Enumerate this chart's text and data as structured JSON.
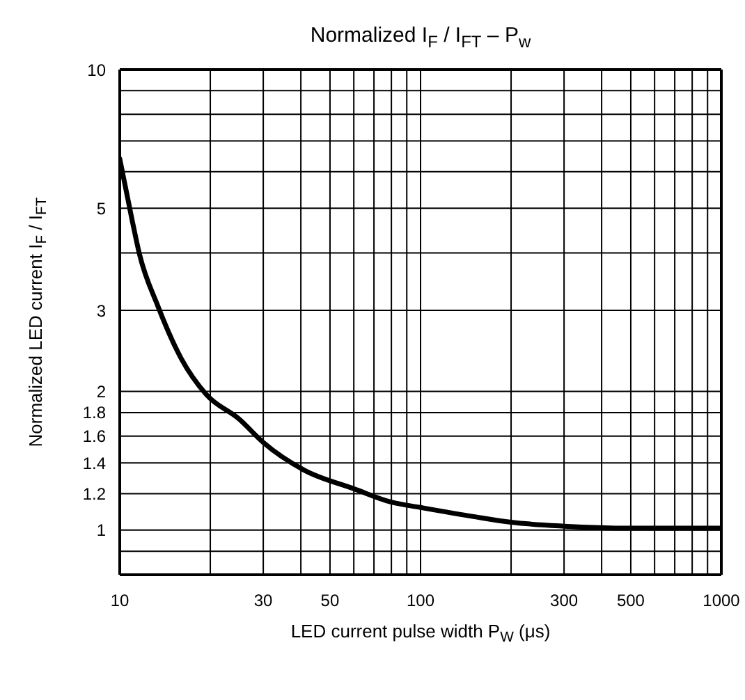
{
  "chart_data": {
    "type": "line",
    "title": "Normalized I$_{F}$ / I$_{FT}$ – P$_{w}$",
    "xlabel": "LED current pulse width   P$_{W}$   (μs)",
    "ylabel": "Normalized LED current I$_{F}$ / I$_{FT}$",
    "log": "xy",
    "grid": true,
    "marker": "none",
    "line_style": "solid",
    "xlim": [
      10,
      1000
    ],
    "ylim": [
      0.8,
      10
    ],
    "xticks": [
      10,
      {
        "value": 20,
        "label": null
      },
      30,
      {
        "value": 40,
        "label": null
      },
      50,
      {
        "value": 60,
        "label": null
      },
      {
        "value": 70,
        "label": null
      },
      {
        "value": 80,
        "label": null
      },
      {
        "value": 90,
        "label": null
      },
      100,
      {
        "value": 200,
        "label": null
      },
      300,
      {
        "value": 400,
        "label": null
      },
      500,
      {
        "value": 600,
        "label": null
      },
      {
        "value": 700,
        "label": null
      },
      {
        "value": 800,
        "label": null
      },
      {
        "value": 900,
        "label": null
      },
      1000
    ],
    "yticks": [
      {
        "value": 0.9,
        "label": null
      },
      1,
      1.2,
      1.4,
      1.6,
      1.8,
      2,
      3,
      {
        "value": 4,
        "label": null
      },
      5,
      {
        "value": 6,
        "label": null
      },
      {
        "value": 7,
        "label": null
      },
      {
        "value": 8,
        "label": null
      },
      {
        "value": 9,
        "label": null
      },
      10
    ],
    "series": [
      {
        "color": "#000000",
        "x": [
          10,
          11,
          11.6,
          13.4,
          16,
          19.4,
          25,
          30,
          41,
          60,
          80,
          100,
          150,
          200,
          300,
          500,
          1000
        ],
        "values": [
          6.4,
          4.7,
          4.0,
          3.06,
          2.36,
          1.97,
          1.74,
          1.55,
          1.35,
          1.23,
          1.15,
          1.12,
          1.07,
          1.04,
          1.02,
          1.01,
          1.01
        ]
      }
    ]
  }
}
